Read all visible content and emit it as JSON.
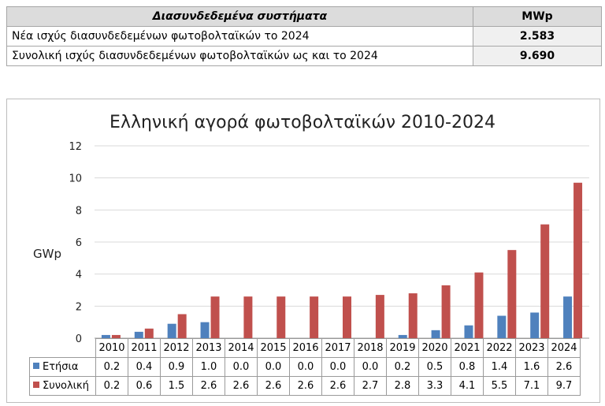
{
  "summary": {
    "header": "Διασυνδεδεμένα συστήματα",
    "unit": "MWp",
    "rows": [
      {
        "label": "Νέα ισχύς διασυνδεδεμένων φωτοβολταϊκών το 2024",
        "value": "2.583"
      },
      {
        "label": "Συνολική ισχύς διασυνδεδεμένων φωτοβολταϊκών ως και το 2024",
        "value": "9.690"
      }
    ]
  },
  "chart_data": {
    "type": "bar",
    "title": "Ελληνική αγορά φωτοβολταϊκών 2010-2024",
    "ylabel": "GWp",
    "ylim": [
      0,
      12
    ],
    "yticks": [
      "0",
      "2",
      "4",
      "6",
      "8",
      "10",
      "12"
    ],
    "grid": true,
    "categories": [
      "2010",
      "2011",
      "2012",
      "2013",
      "2014",
      "2015",
      "2016",
      "2017",
      "2018",
      "2019",
      "2020",
      "2021",
      "2022",
      "2023",
      "2024"
    ],
    "series": [
      {
        "name": "Ετήσια",
        "color": "#4f81bd",
        "values": [
          0.2,
          0.4,
          0.9,
          1.0,
          0.0,
          0.0,
          0.0,
          0.0,
          0.0,
          0.2,
          0.5,
          0.8,
          1.4,
          1.6,
          2.6
        ],
        "labels": [
          "0.2",
          "0.4",
          "0.9",
          "1.0",
          "0.0",
          "0.0",
          "0.0",
          "0.0",
          "0.0",
          "0.2",
          "0.5",
          "0.8",
          "1.4",
          "1.6",
          "2.6"
        ]
      },
      {
        "name": "Συνολική",
        "color": "#c0504d",
        "values": [
          0.2,
          0.6,
          1.5,
          2.6,
          2.6,
          2.6,
          2.6,
          2.6,
          2.7,
          2.8,
          3.3,
          4.1,
          5.5,
          7.1,
          9.7
        ],
        "labels": [
          "0.2",
          "0.6",
          "1.5",
          "2.6",
          "2.6",
          "2.6",
          "2.6",
          "2.6",
          "2.7",
          "2.8",
          "3.3",
          "4.1",
          "5.5",
          "7.1",
          "9.7"
        ]
      }
    ]
  }
}
